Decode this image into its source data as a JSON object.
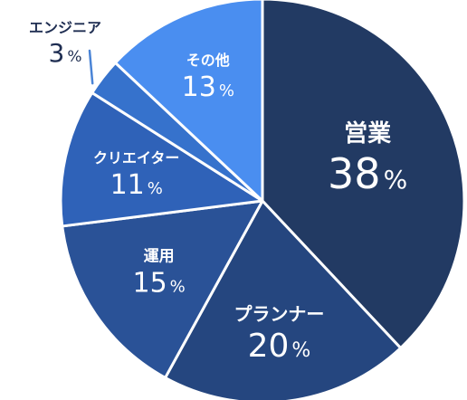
{
  "chart_data": {
    "type": "pie",
    "title": "",
    "unit": "%",
    "slices": [
      {
        "name": "営業",
        "value": 38,
        "color": "#223a63"
      },
      {
        "name": "プランナー",
        "value": 20,
        "color": "#25467f"
      },
      {
        "name": "運用",
        "value": 15,
        "color": "#2a5297"
      },
      {
        "name": "クリエイター",
        "value": 11,
        "color": "#2f62b8"
      },
      {
        "name": "エンジニア",
        "value": 3,
        "color": "#3672cc"
      },
      {
        "name": "その他",
        "value": 13,
        "color": "#4a8ef0"
      }
    ]
  }
}
